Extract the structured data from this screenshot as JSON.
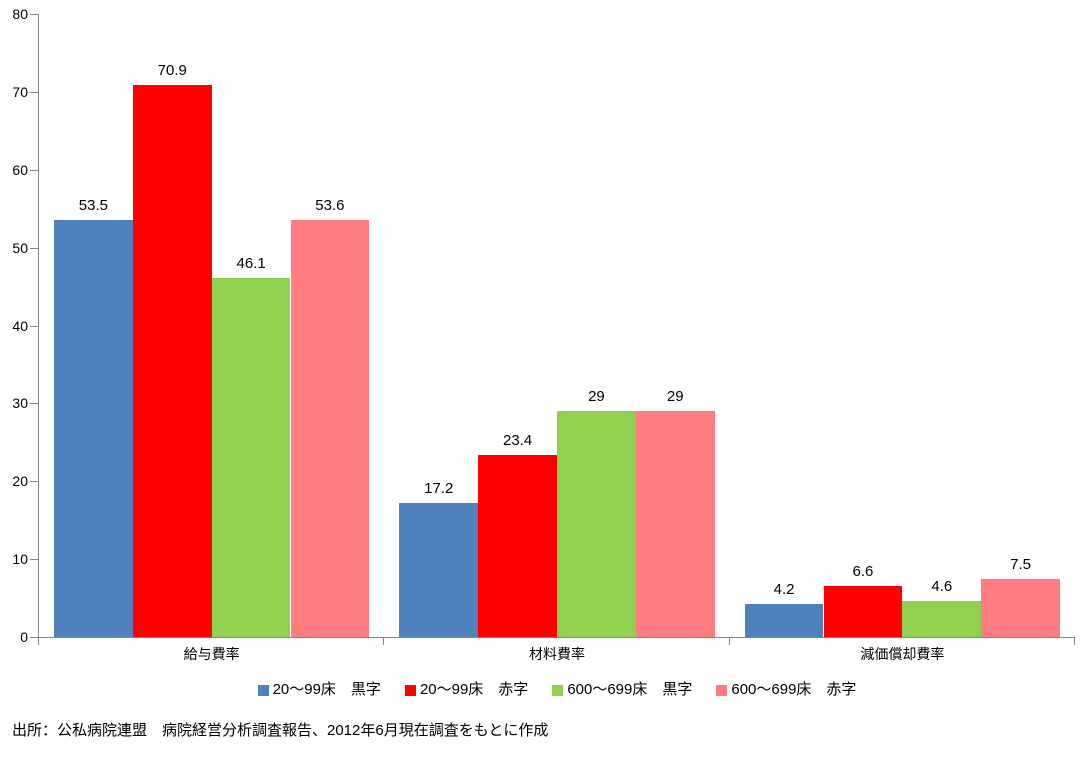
{
  "chart_data": {
    "type": "bar",
    "title": "",
    "xlabel": "",
    "ylabel": "",
    "categories": [
      "給与費率",
      "材料費率",
      "減価償却費率"
    ],
    "series": [
      {
        "name": "20〜99床　黒字",
        "color": "#4F81BD",
        "values": [
          53.5,
          17.2,
          4.2
        ]
      },
      {
        "name": "20〜99床　赤字",
        "color": "#FF0000",
        "values": [
          70.9,
          23.4,
          6.6
        ]
      },
      {
        "name": "600〜699床　黒字",
        "color": "#92D050",
        "values": [
          46.1,
          29,
          4.6
        ]
      },
      {
        "name": "600〜699床　赤字",
        "color": "#FF7C80",
        "values": [
          53.6,
          29,
          7.5
        ]
      }
    ],
    "data_labels": [
      [
        "53.5",
        "17.2",
        "4.2"
      ],
      [
        "70.9",
        "23.4",
        "6.6"
      ],
      [
        "46.1",
        "29",
        "4.6"
      ],
      [
        "53.6",
        "29",
        "7.5"
      ]
    ],
    "ylim": [
      0,
      80
    ],
    "y_ticks": [
      0,
      10,
      20,
      30,
      40,
      50,
      60,
      70,
      80
    ],
    "grid": false,
    "legend_position": "bottom",
    "axis_color": "#868686",
    "text_color": "#000000",
    "background_color": "#FFFFFF"
  },
  "source_note": "出所：公私病院連盟　病院経営分析調査報告、2012年6月現在調査をもとに作成"
}
